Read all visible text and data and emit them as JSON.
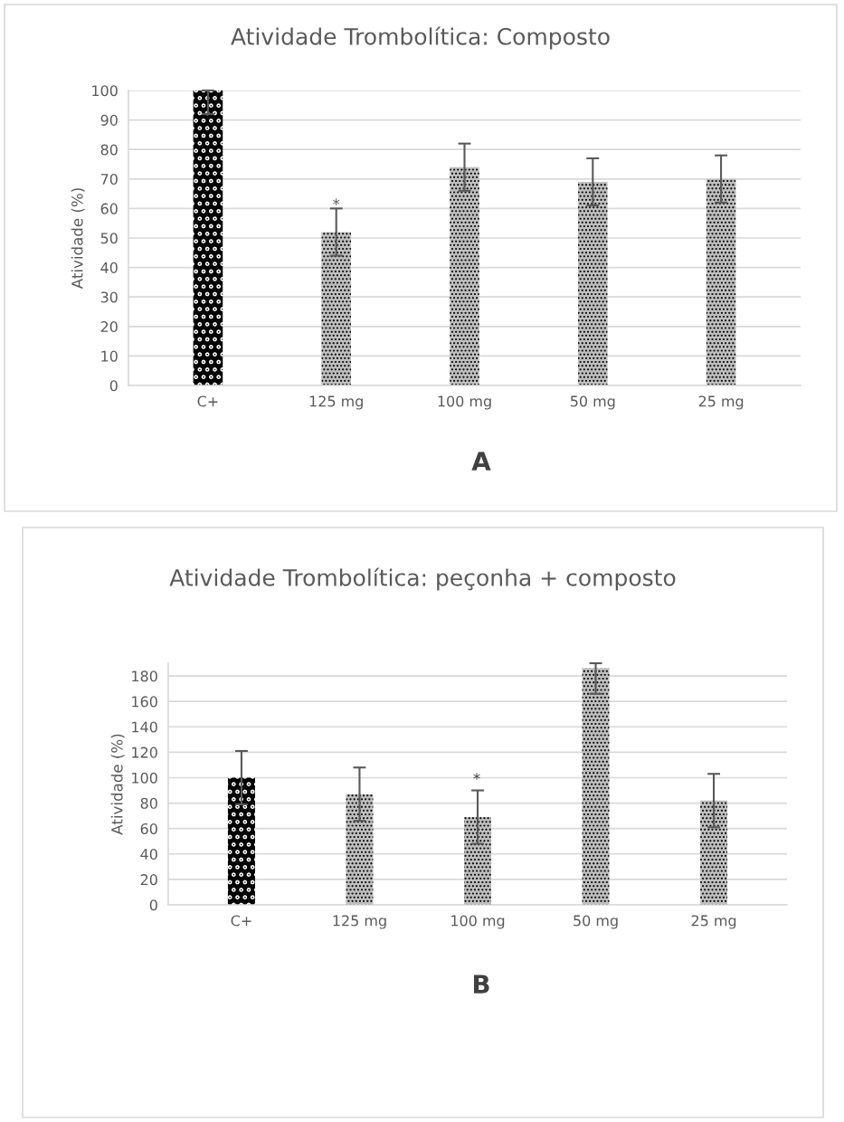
{
  "chart_data": [
    {
      "type": "bar",
      "title": "Atividade Trombolítica: Composto",
      "ylabel": "Atividade (%)",
      "categories": [
        "C+",
        "125 mg",
        "100 mg",
        "50 mg",
        "25 mg"
      ],
      "values": [
        100,
        52,
        74,
        69,
        70
      ],
      "errors": [
        [
          92,
          100
        ],
        8,
        8,
        8,
        8
      ],
      "colors": [
        "#000000",
        "#bfbfbf",
        "#bfbfbf",
        "#bfbfbf",
        "#bfbfbf"
      ],
      "ylim": [
        0,
        100
      ],
      "yticks": [
        0,
        10,
        20,
        30,
        40,
        50,
        60,
        70,
        80,
        90,
        100
      ],
      "grid": "y",
      "annotations": [
        {
          "text": "*",
          "x": "125 mg",
          "y": 61
        },
        "A"
      ]
    },
    {
      "type": "bar",
      "title": "Atividade Trombolítica: peçonha + composto",
      "ylabel": "Atividade (%)",
      "categories": [
        "C+",
        "125 mg",
        "100 mg",
        "50 mg",
        "25 mg"
      ],
      "values": [
        100,
        87,
        69,
        186,
        82
      ],
      "errors": [
        21,
        21,
        21,
        [
          166,
          190
        ],
        21
      ],
      "colors": [
        "#000000",
        "#bfbfbf",
        "#bfbfbf",
        "#bfbfbf",
        "#bfbfbf"
      ],
      "ylim": [
        0,
        190
      ],
      "yticks": [
        0,
        20,
        40,
        60,
        80,
        100,
        120,
        140,
        160,
        180
      ],
      "grid": "y",
      "annotations": [
        "*",
        "B"
      ]
    }
  ]
}
